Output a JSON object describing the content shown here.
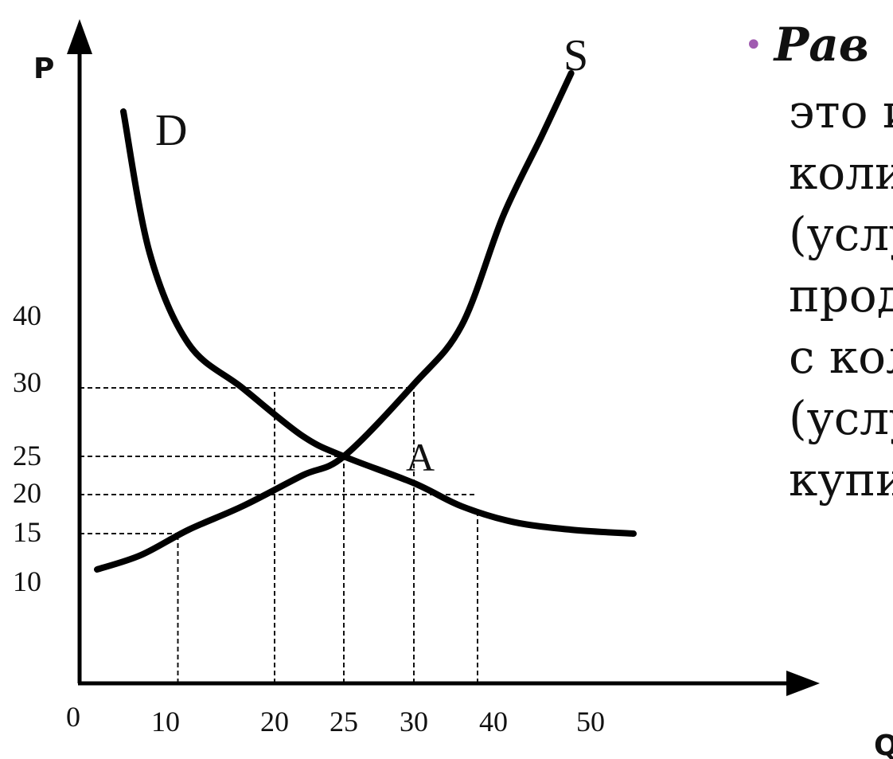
{
  "chart_data": {
    "type": "line",
    "xlabel": "Q",
    "ylabel": "P",
    "xlim": [
      0,
      60
    ],
    "ylim": [
      0,
      60
    ],
    "x_ticks": [
      {
        "value": 0,
        "label": "0"
      },
      {
        "value": 10,
        "label": "10"
      },
      {
        "value": 20,
        "label": "20"
      },
      {
        "value": 25,
        "label": "25"
      },
      {
        "value": 30,
        "label": "30"
      },
      {
        "value": 40,
        "label": "40"
      },
      {
        "value": 50,
        "label": "50"
      }
    ],
    "y_ticks": [
      {
        "value": 10,
        "label": "10"
      },
      {
        "value": 15,
        "label": "15"
      },
      {
        "value": 20,
        "label": "20"
      },
      {
        "value": 25,
        "label": "25"
      },
      {
        "value": 30,
        "label": "30"
      },
      {
        "value": 40,
        "label": "40"
      }
    ],
    "series": [
      {
        "name": "D",
        "x": [
          5,
          8,
          12,
          17,
          22,
          25,
          30,
          36,
          42,
          48,
          55
        ],
        "y": [
          60,
          45,
          36,
          30,
          26.5,
          25,
          21.5,
          18.5,
          16.5,
          15.5,
          15
        ]
      },
      {
        "name": "S",
        "x": [
          2,
          7,
          12,
          17,
          22,
          25,
          30,
          36,
          41,
          45,
          48
        ],
        "y": [
          12.5,
          13.5,
          15.5,
          18.5,
          22.5,
          25,
          30.5,
          38.5,
          48,
          57,
          63
        ]
      }
    ],
    "guide_lines": [
      {
        "from": [
          0,
          30
        ],
        "to": [
          30,
          30
        ]
      },
      {
        "from": [
          0,
          25
        ],
        "to": [
          25,
          25
        ]
      },
      {
        "from": [
          0,
          20
        ],
        "to": [
          38,
          20
        ]
      },
      {
        "from": [
          0,
          15
        ],
        "to": [
          0,
          15
        ]
      },
      {
        "from": [
          11,
          0
        ],
        "to": [
          11,
          15
        ]
      },
      {
        "from": [
          20,
          0
        ],
        "to": [
          20,
          30
        ]
      },
      {
        "from": [
          25,
          0
        ],
        "to": [
          25,
          25
        ]
      },
      {
        "from": [
          30,
          0
        ],
        "to": [
          30,
          30
        ]
      },
      {
        "from": [
          38,
          0
        ],
        "to": [
          38,
          18
        ]
      }
    ],
    "points": [
      {
        "label": "A",
        "x": 25,
        "y": 25
      }
    ]
  },
  "side_text": {
    "bullet": "•",
    "title": "Рав",
    "lines": [
      "это и",
      "коли",
      "(услу",
      "прод",
      "с кол",
      "(услу",
      "купи"
    ]
  },
  "colors": {
    "bullet": "#a05bb0",
    "curve": "#000000"
  }
}
